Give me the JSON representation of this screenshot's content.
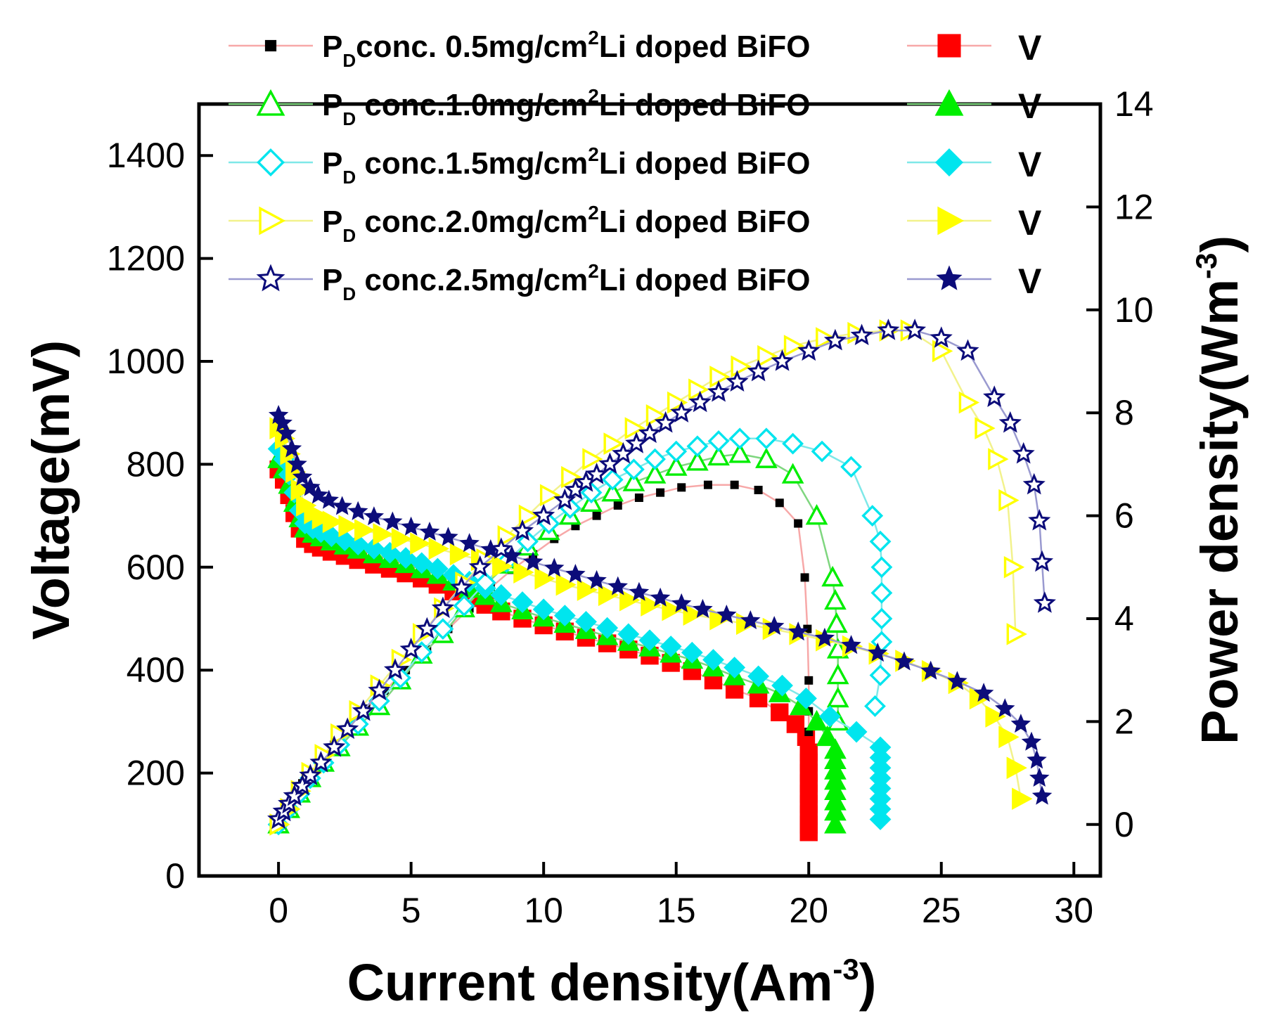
{
  "chart_data": {
    "type": "scatter",
    "xlabel": "Current density(Am",
    "xlabel_sup": "-3",
    "xlabel_close": ")",
    "ylabel": "Voltage(mV)",
    "y2label": "Power density(Wm",
    "y2label_sup": "-3",
    "y2label_close": ")",
    "xlim": [
      -3,
      31
    ],
    "ylim": [
      0,
      1500
    ],
    "y2lim": [
      -1,
      14
    ],
    "x_ticks": [
      0,
      5,
      10,
      15,
      20,
      25,
      30
    ],
    "y_ticks": [
      0,
      200,
      400,
      600,
      800,
      1000,
      1200,
      1400
    ],
    "y2_ticks": [
      0,
      2,
      4,
      6,
      8,
      10,
      12,
      14
    ],
    "legend_position": "top",
    "legend": {
      "subscript": "D",
      "v_label": "V",
      "entries": [
        {
          "prefix": "P",
          "text": "conc. 0.5mg/cm",
          "sup": "2",
          "suffix": "Li doped BiFO"
        },
        {
          "prefix": "P",
          "text": " conc.1.0mg/cm",
          "sup": "2",
          "suffix": "Li doped BiFO"
        },
        {
          "prefix": "P",
          "text": " conc.1.5mg/cm",
          "sup": "2",
          "suffix": "Li doped BiFO"
        },
        {
          "prefix": "P",
          "text": " conc.2.0mg/cm",
          "sup": "2",
          "suffix": "Li doped BiFO"
        },
        {
          "prefix": "P",
          "text": " conc.2.5mg/cm",
          "sup": "2",
          "suffix": "Li doped BiFO"
        }
      ]
    },
    "series": [
      {
        "name": "0.5mg/cm2",
        "line_color": "#f7a8a8",
        "marker_color": "#ff0000",
        "pd_marker_color": "#000000",
        "marker_pd": "square-small",
        "marker_v": "square",
        "power_density": {
          "x": [
            0,
            0.3,
            0.6,
            0.9,
            1.2,
            1.6,
            2.1,
            2.7,
            3.3,
            4,
            4.8,
            5.6,
            6.4,
            7.2,
            8,
            8.8,
            9.6,
            10.4,
            11.2,
            12,
            12.8,
            13.6,
            14.4,
            15.2,
            16.2,
            17.2,
            18.1,
            18.9,
            19.6,
            19.85,
            19.95,
            20,
            20,
            20
          ],
          "y": [
            0.05,
            0.3,
            0.55,
            0.8,
            1.0,
            1.25,
            1.55,
            1.9,
            2.25,
            2.6,
            3.0,
            3.4,
            3.8,
            4.2,
            4.6,
            4.95,
            5.25,
            5.55,
            5.8,
            6.0,
            6.2,
            6.35,
            6.45,
            6.55,
            6.6,
            6.6,
            6.5,
            6.25,
            5.85,
            4.8,
            3.8,
            2.8,
            2.2,
            1.8
          ]
        },
        "voltage": {
          "x": [
            0,
            0.2,
            0.4,
            0.6,
            0.8,
            1.0,
            1.3,
            1.6,
            2.0,
            2.5,
            3,
            3.6,
            4.2,
            4.8,
            5.4,
            6,
            6.6,
            7.2,
            7.8,
            8.4,
            9.2,
            10,
            10.8,
            11.6,
            12.4,
            13.2,
            14,
            14.8,
            15.6,
            16.4,
            17.2,
            18.1,
            18.9,
            19.5,
            19.9,
            20,
            20,
            20,
            20,
            20,
            20,
            20,
            20,
            20
          ],
          "y": [
            790,
            770,
            740,
            705,
            675,
            655,
            645,
            638,
            630,
            622,
            614,
            605,
            597,
            588,
            578,
            566,
            553,
            540,
            527,
            514,
            500,
            487,
            475,
            463,
            452,
            440,
            428,
            414,
            398,
            380,
            362,
            345,
            318,
            295,
            270,
            240,
            220,
            200,
            180,
            160,
            140,
            120,
            100,
            85
          ]
        }
      },
      {
        "name": "1.0mg/cm2",
        "line_color": "#7fd67f",
        "marker_color": "#00ee00",
        "pd_marker_color": "#00ee00",
        "marker_pd": "triangle-open",
        "marker_v": "triangle",
        "power_density": {
          "x": [
            0,
            0.4,
            0.8,
            1.2,
            1.7,
            2.3,
            3,
            3.8,
            4.6,
            5.4,
            6.2,
            7,
            7.8,
            8.6,
            9.4,
            10.2,
            11,
            11.8,
            12.6,
            13.4,
            14.2,
            15,
            15.8,
            16.6,
            17.4,
            18.4,
            19.4,
            20.3,
            20.9,
            21.0,
            21.05,
            21.1,
            21.1,
            21.1,
            21.1
          ],
          "y": [
            0,
            0.3,
            0.6,
            0.9,
            1.2,
            1.5,
            1.9,
            2.3,
            2.8,
            3.3,
            3.7,
            4.2,
            4.65,
            5.05,
            5.4,
            5.7,
            6.0,
            6.25,
            6.45,
            6.65,
            6.8,
            6.95,
            7.05,
            7.15,
            7.2,
            7.1,
            6.8,
            6.0,
            4.8,
            4.35,
            3.9,
            3.4,
            2.9,
            2.45,
            2.0
          ]
        },
        "voltage": {
          "x": [
            0,
            0.2,
            0.4,
            0.6,
            0.8,
            1.0,
            1.3,
            1.6,
            2.0,
            2.5,
            3,
            3.6,
            4.2,
            4.8,
            5.4,
            6,
            6.6,
            7.2,
            7.8,
            8.4,
            9.2,
            10,
            10.8,
            11.6,
            12.4,
            13.2,
            14,
            14.8,
            15.6,
            16.4,
            17.2,
            18.1,
            18.9,
            19.7,
            20.3,
            20.7,
            21,
            21,
            21,
            21,
            21,
            21,
            21,
            21
          ],
          "y": [
            810,
            790,
            760,
            725,
            695,
            675,
            665,
            658,
            650,
            642,
            634,
            625,
            616,
            606,
            596,
            585,
            572,
            558,
            544,
            530,
            516,
            502,
            490,
            478,
            466,
            455,
            444,
            432,
            420,
            405,
            388,
            372,
            355,
            330,
            300,
            270,
            245,
            225,
            205,
            185,
            165,
            145,
            125,
            100
          ]
        }
      },
      {
        "name": "1.5mg/cm2",
        "line_color": "#7fe8e8",
        "marker_color": "#00e5ee",
        "pd_marker_color": "#00e5ee",
        "marker_pd": "diamond-open",
        "marker_v": "diamond",
        "power_density": {
          "x": [
            0,
            0.4,
            0.8,
            1.2,
            1.7,
            2.3,
            3,
            3.8,
            4.6,
            5.4,
            6.2,
            7,
            7.8,
            8.6,
            9.4,
            10.2,
            11,
            11.8,
            12.6,
            13.4,
            14.2,
            15,
            15.8,
            16.6,
            17.4,
            18.4,
            19.4,
            20.5,
            21.6,
            22.4,
            22.7,
            22.75,
            22.75,
            22.75,
            22.75,
            22.7,
            22.5
          ],
          "y": [
            0,
            0.3,
            0.6,
            0.9,
            1.2,
            1.55,
            1.95,
            2.4,
            2.85,
            3.35,
            3.8,
            4.25,
            4.7,
            5.1,
            5.5,
            5.85,
            6.15,
            6.45,
            6.7,
            6.9,
            7.1,
            7.25,
            7.35,
            7.45,
            7.5,
            7.5,
            7.4,
            7.25,
            6.95,
            6.0,
            5.5,
            5.0,
            4.5,
            4.0,
            3.55,
            2.9,
            2.3
          ]
        },
        "voltage": {
          "x": [
            0,
            0.2,
            0.4,
            0.6,
            0.8,
            1.0,
            1.3,
            1.6,
            2.0,
            2.5,
            3,
            3.6,
            4.2,
            4.8,
            5.4,
            6,
            6.6,
            7.2,
            7.8,
            8.4,
            9.2,
            10,
            10.8,
            11.6,
            12.4,
            13.2,
            14,
            14.8,
            15.6,
            16.4,
            17.2,
            18.1,
            19,
            19.9,
            20.8,
            21.8,
            22.7,
            22.7,
            22.7,
            22.7,
            22.7,
            22.7,
            22.7,
            22.7
          ],
          "y": [
            830,
            810,
            780,
            745,
            710,
            685,
            675,
            668,
            660,
            652,
            644,
            636,
            628,
            618,
            608,
            597,
            585,
            572,
            559,
            546,
            532,
            518,
            506,
            494,
            482,
            470,
            458,
            446,
            434,
            420,
            405,
            388,
            370,
            345,
            310,
            280,
            250,
            230,
            210,
            190,
            170,
            150,
            130,
            110
          ]
        }
      },
      {
        "name": "2.0mg/cm2",
        "line_color": "#f2f28c",
        "marker_color": "#ffff00",
        "pd_marker_color": "#ffff00",
        "marker_pd": "triangle-right-open",
        "marker_v": "triangle-right",
        "power_density": {
          "x": [
            0,
            0.4,
            0.8,
            1.2,
            1.7,
            2.3,
            3,
            3.8,
            4.6,
            5.4,
            6.2,
            7,
            7.8,
            8.6,
            9.4,
            10.2,
            11,
            11.8,
            12.6,
            13.4,
            14.2,
            15,
            15.8,
            16.6,
            17.4,
            18.4,
            19.4,
            20.6,
            21.8,
            23,
            23.8,
            25,
            26,
            26.6,
            27.1,
            27.5,
            27.7,
            27.8
          ],
          "y": [
            0,
            0.3,
            0.65,
            1.0,
            1.35,
            1.75,
            2.2,
            2.7,
            3.2,
            3.7,
            4.2,
            4.7,
            5.15,
            5.6,
            6.0,
            6.4,
            6.75,
            7.1,
            7.4,
            7.7,
            7.95,
            8.2,
            8.45,
            8.7,
            8.9,
            9.1,
            9.3,
            9.45,
            9.55,
            9.6,
            9.6,
            9.2,
            8.2,
            7.7,
            7.1,
            6.3,
            5.0,
            3.7
          ]
        },
        "voltage": {
          "x": [
            0,
            0.2,
            0.4,
            0.6,
            0.8,
            1.0,
            1.3,
            1.6,
            2.0,
            2.6,
            3.2,
            3.9,
            4.6,
            5.3,
            6,
            6.8,
            7.6,
            8.4,
            9.2,
            10,
            10.8,
            11.6,
            12.4,
            13.2,
            14,
            14.8,
            15.6,
            16.6,
            17.6,
            18.6,
            19.6,
            20.6,
            21.6,
            22.6,
            23.6,
            24.6,
            25.6,
            26.4,
            27,
            27.5,
            27.8,
            28
          ],
          "y": [
            870,
            850,
            820,
            785,
            750,
            720,
            705,
            695,
            688,
            680,
            672,
            664,
            655,
            646,
            636,
            625,
            614,
            602,
            590,
            578,
            566,
            556,
            546,
            536,
            526,
            517,
            508,
            499,
            490,
            480,
            470,
            458,
            446,
            432,
            418,
            398,
            375,
            345,
            310,
            270,
            210,
            150
          ]
        }
      },
      {
        "name": "2.5mg/cm2",
        "line_color": "#9a9ad0",
        "marker_color": "#0c0c7a",
        "pd_marker_color": "#0c0c7a",
        "marker_pd": "star-open",
        "marker_v": "star",
        "power_density": {
          "x": [
            0,
            0.2,
            0.4,
            0.6,
            0.9,
            1.2,
            1.6,
            2.1,
            2.6,
            3.2,
            3.8,
            4.4,
            5,
            5.6,
            6.2,
            6.9,
            7.6,
            8.4,
            9.2,
            10,
            10.8,
            11.2,
            11.6,
            12,
            12.5,
            13,
            13.5,
            14,
            14.6,
            15.2,
            15.9,
            16.6,
            17.3,
            18.1,
            19,
            20,
            21,
            22,
            23,
            24,
            25,
            26,
            27,
            27.6,
            28.1,
            28.5,
            28.7,
            28.8,
            28.9
          ],
          "y": [
            0.1,
            0.25,
            0.4,
            0.55,
            0.75,
            0.95,
            1.2,
            1.5,
            1.85,
            2.2,
            2.6,
            3.0,
            3.4,
            3.8,
            4.2,
            4.6,
            5.0,
            5.35,
            5.7,
            6.0,
            6.3,
            6.5,
            6.65,
            6.8,
            7.0,
            7.2,
            7.4,
            7.6,
            7.8,
            8.0,
            8.2,
            8.4,
            8.6,
            8.8,
            9.0,
            9.2,
            9.4,
            9.5,
            9.6,
            9.6,
            9.45,
            9.2,
            8.3,
            7.8,
            7.2,
            6.6,
            5.9,
            5.1,
            4.3
          ]
        },
        "voltage": {
          "x": [
            0,
            0.15,
            0.3,
            0.5,
            0.7,
            0.9,
            1.2,
            1.5,
            1.9,
            2.4,
            3,
            3.6,
            4.3,
            5,
            5.7,
            6.4,
            7.2,
            8,
            8.8,
            9.6,
            10.4,
            11.2,
            12,
            12.8,
            13.6,
            14.4,
            15.2,
            16,
            16.9,
            17.8,
            18.7,
            19.6,
            20.6,
            21.6,
            22.6,
            23.6,
            24.6,
            25.6,
            26.6,
            27.4,
            28,
            28.4,
            28.6,
            28.7,
            28.8
          ],
          "y": [
            895,
            880,
            860,
            830,
            800,
            775,
            755,
            740,
            730,
            718,
            708,
            698,
            688,
            678,
            668,
            658,
            646,
            634,
            622,
            610,
            598,
            586,
            574,
            562,
            551,
            540,
            529,
            518,
            507,
            496,
            485,
            474,
            462,
            448,
            433,
            416,
            398,
            378,
            355,
            325,
            295,
            260,
            225,
            190,
            155
          ]
        }
      }
    ]
  }
}
